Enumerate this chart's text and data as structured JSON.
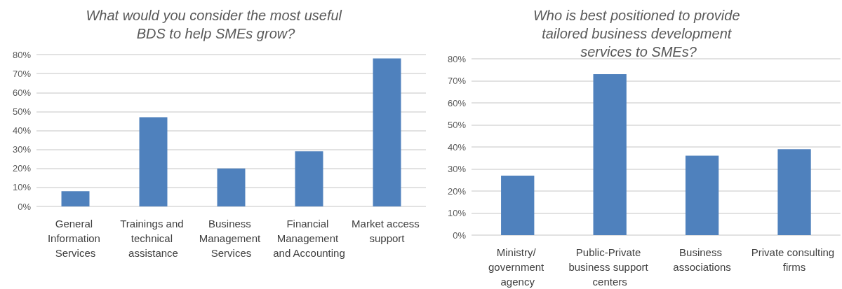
{
  "chart_data": [
    {
      "type": "bar",
      "title": "What would you consider the most useful BDS to help SMEs grow?",
      "categories": [
        "General Information Services",
        "Trainings and technical assistance",
        "Business Management Services",
        "Financial Management and Accounting",
        "Market access support"
      ],
      "values": [
        8,
        47,
        20,
        29,
        78
      ],
      "color": "#4f81bd",
      "ylim": [
        0,
        80
      ],
      "yticks": [
        {
          "value": 0,
          "label": "0%"
        },
        {
          "value": 10,
          "label": "10%"
        },
        {
          "value": 20,
          "label": "20%"
        },
        {
          "value": 30,
          "label": "30%"
        },
        {
          "value": 40,
          "label": "40%"
        },
        {
          "value": 50,
          "label": "50%"
        },
        {
          "value": 60,
          "label": "60%"
        },
        {
          "value": 70,
          "label": "70%"
        },
        {
          "value": 80,
          "label": "80%"
        }
      ],
      "grid": "y",
      "legend": false
    },
    {
      "type": "bar",
      "title": "Who is best positioned to provide tailored business development services to SMEs?",
      "categories": [
        "Ministry/ government agency",
        "Public-Private business support centers",
        "Business associations",
        "Private consulting firms"
      ],
      "values": [
        27,
        73,
        36,
        39
      ],
      "color": "#4f81bd",
      "ylim": [
        0,
        80
      ],
      "yticks": [
        {
          "value": 0,
          "label": "0%"
        },
        {
          "value": 10,
          "label": "10%"
        },
        {
          "value": 20,
          "label": "20%"
        },
        {
          "value": 30,
          "label": "30%"
        },
        {
          "value": 40,
          "label": "40%"
        },
        {
          "value": 50,
          "label": "50%"
        },
        {
          "value": 60,
          "label": "60%"
        },
        {
          "value": 70,
          "label": "70%"
        },
        {
          "value": 80,
          "label": "80%"
        }
      ],
      "grid": "y",
      "legend": false
    }
  ]
}
